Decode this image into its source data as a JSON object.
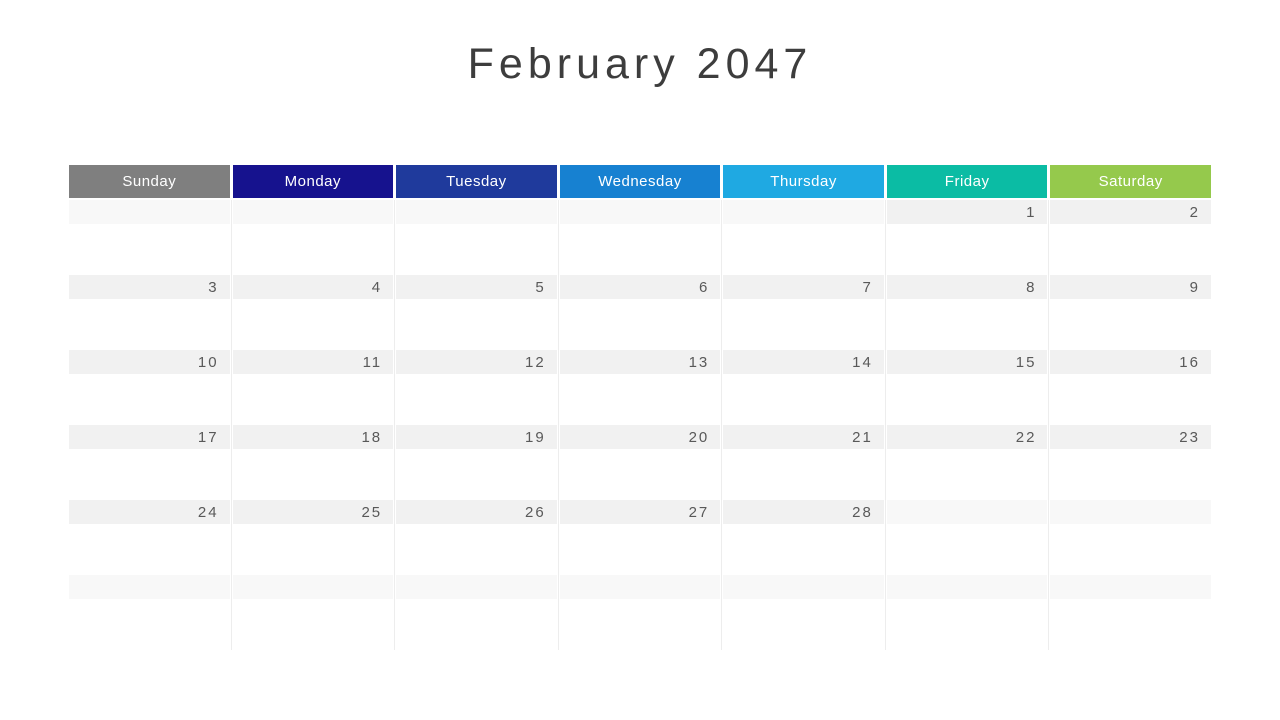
{
  "title": "February 2047",
  "weekdays": [
    {
      "label": "Sunday",
      "color": "#7F7F7F"
    },
    {
      "label": "Monday",
      "color": "#16128E"
    },
    {
      "label": "Tuesday",
      "color": "#1F3A9C"
    },
    {
      "label": "Wednesday",
      "color": "#1781D1"
    },
    {
      "label": "Thursday",
      "color": "#1FA9E2"
    },
    {
      "label": "Friday",
      "color": "#0BBCA4"
    },
    {
      "label": "Saturday",
      "color": "#95C94C"
    }
  ],
  "weeks": [
    {
      "days": [
        {
          "date": "",
          "in_month": false
        },
        {
          "date": "",
          "in_month": false
        },
        {
          "date": "",
          "in_month": false
        },
        {
          "date": "",
          "in_month": false
        },
        {
          "date": "",
          "in_month": false
        },
        {
          "date": "1",
          "in_month": true
        },
        {
          "date": "2",
          "in_month": true
        }
      ]
    },
    {
      "days": [
        {
          "date": "3",
          "in_month": true
        },
        {
          "date": "4",
          "in_month": true
        },
        {
          "date": "5",
          "in_month": true
        },
        {
          "date": "6",
          "in_month": true
        },
        {
          "date": "7",
          "in_month": true
        },
        {
          "date": "8",
          "in_month": true
        },
        {
          "date": "9",
          "in_month": true
        }
      ]
    },
    {
      "days": [
        {
          "date": "10",
          "in_month": true
        },
        {
          "date": "11",
          "in_month": true
        },
        {
          "date": "12",
          "in_month": true
        },
        {
          "date": "13",
          "in_month": true
        },
        {
          "date": "14",
          "in_month": true
        },
        {
          "date": "15",
          "in_month": true
        },
        {
          "date": "16",
          "in_month": true
        }
      ]
    },
    {
      "days": [
        {
          "date": "17",
          "in_month": true
        },
        {
          "date": "18",
          "in_month": true
        },
        {
          "date": "19",
          "in_month": true
        },
        {
          "date": "20",
          "in_month": true
        },
        {
          "date": "21",
          "in_month": true
        },
        {
          "date": "22",
          "in_month": true
        },
        {
          "date": "23",
          "in_month": true
        }
      ]
    },
    {
      "days": [
        {
          "date": "24",
          "in_month": true
        },
        {
          "date": "25",
          "in_month": true
        },
        {
          "date": "26",
          "in_month": true
        },
        {
          "date": "27",
          "in_month": true
        },
        {
          "date": "28",
          "in_month": true
        },
        {
          "date": "",
          "in_month": false
        },
        {
          "date": "",
          "in_month": false
        }
      ]
    },
    {
      "days": [
        {
          "date": "",
          "in_month": false
        },
        {
          "date": "",
          "in_month": false
        },
        {
          "date": "",
          "in_month": false
        },
        {
          "date": "",
          "in_month": false
        },
        {
          "date": "",
          "in_month": false
        },
        {
          "date": "",
          "in_month": false
        },
        {
          "date": "",
          "in_month": false
        }
      ]
    }
  ],
  "colors": {
    "background": "#FFFFFF",
    "title_text": "#3D3D3D",
    "date_text": "#595959",
    "in_month_band": "#F1F1F1",
    "out_month_band": "#F8F8F8",
    "grid_line": "#EDEDED",
    "header_text": "#FFFFFF"
  }
}
